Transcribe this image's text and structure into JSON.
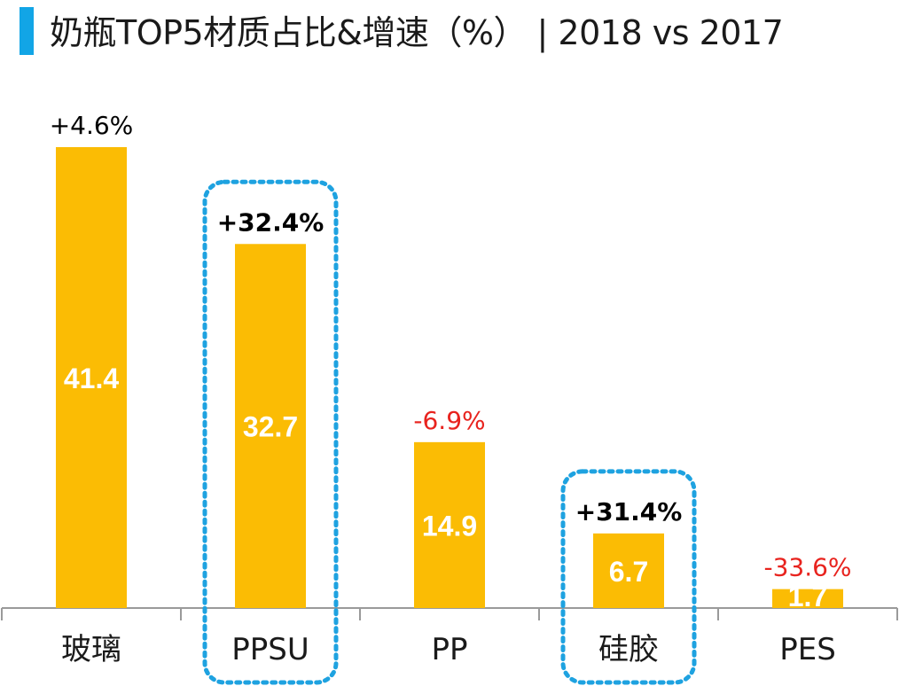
{
  "title": "奶瓶TOP5材质占比&增速（%） | 2018 vs 2017",
  "colors": {
    "accent": "#12a5e6",
    "bar": "#fbbc04",
    "bar_value_text": "#ffffff",
    "growth_positive": "#000000",
    "growth_negative": "#e8231e",
    "highlight_border": "#1ea2e0",
    "axis": "#9a9a9a"
  },
  "chart_data": {
    "type": "bar",
    "title": "奶瓶TOP5材质占比&增速（%） | 2018 vs 2017",
    "categories": [
      "玻璃",
      "PPSU",
      "PP",
      "硅胶",
      "PES"
    ],
    "values": [
      41.4,
      32.7,
      14.9,
      6.7,
      1.7
    ],
    "value_labels": [
      "41.4",
      "32.7",
      "14.9",
      "6.7",
      "1.7"
    ],
    "growth_labels": [
      "+4.6%",
      "+32.4%",
      "-6.9%",
      "+31.4%",
      "-33.6%"
    ],
    "growth": [
      4.6,
      32.4,
      -6.9,
      31.4,
      -33.6
    ],
    "highlighted": [
      "PPSU",
      "硅胶"
    ],
    "ylim": [
      0,
      41.4
    ],
    "xlabel": "",
    "ylabel": "",
    "grid": false
  }
}
